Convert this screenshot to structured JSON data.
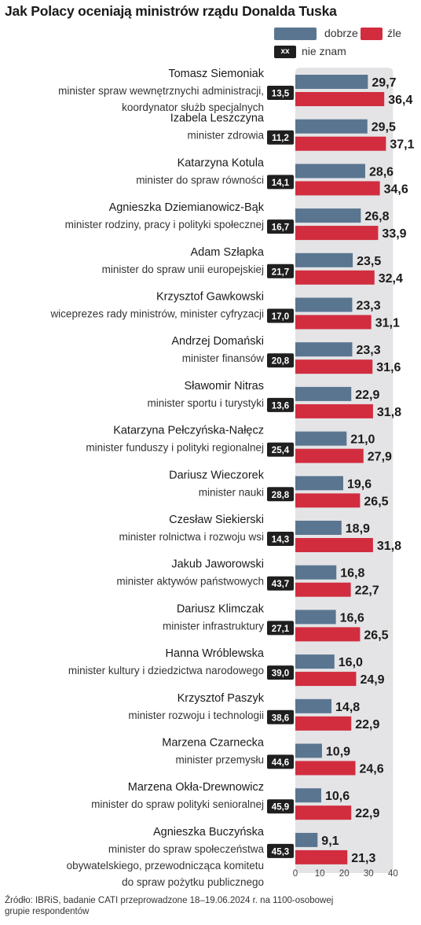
{
  "title": "Jak Polacy oceniają ministrów rządu Donalda Tuska",
  "legend": {
    "good": "dobrze",
    "bad": "źle",
    "unknown_code": "xx",
    "unknown": "nie znam"
  },
  "colors": {
    "good": "#5a7590",
    "bad": "#d12d3f",
    "unknown_box": "#1f1f1f",
    "band": "#e4e4e6"
  },
  "source": "Źródło: IBRiS, badanie CATI przeprowadzone 18–19.06.2024 r. na 1100-osobowej grupie respondentów",
  "chart_data": {
    "type": "bar",
    "orientation": "horizontal",
    "xlim": [
      0,
      40
    ],
    "x_ticks": [
      "0",
      "10",
      "20",
      "30",
      "40"
    ],
    "series": [
      {
        "name": "dobrze",
        "key": "good"
      },
      {
        "name": "źle",
        "key": "bad"
      },
      {
        "name": "nie znam",
        "key": "unknown"
      }
    ],
    "rows": [
      {
        "name": "Tomasz Siemoniak",
        "role": [
          "minister spraw wewnętrznychi administracji,",
          "koordynator służb specjalnych"
        ],
        "good": 29.7,
        "bad": 36.4,
        "unknown": 13.5,
        "good_label": "29,7",
        "bad_label": "36,4",
        "unknown_label": "13,5"
      },
      {
        "name": "Izabela Leszczyna",
        "role": [
          "minister zdrowia"
        ],
        "good": 29.5,
        "bad": 37.1,
        "unknown": 11.2,
        "good_label": "29,5",
        "bad_label": "37,1",
        "unknown_label": "11,2"
      },
      {
        "name": "Katarzyna Kotula",
        "role": [
          "minister do spraw równości"
        ],
        "good": 28.6,
        "bad": 34.6,
        "unknown": 14.1,
        "good_label": "28,6",
        "bad_label": "34,6",
        "unknown_label": "14,1"
      },
      {
        "name": "Agnieszka Dziemianowicz-Bąk",
        "role": [
          "minister rodziny, pracy i polityki społecznej"
        ],
        "good": 26.8,
        "bad": 33.9,
        "unknown": 16.7,
        "good_label": "26,8",
        "bad_label": "33,9",
        "unknown_label": "16,7"
      },
      {
        "name": "Adam Szłapka",
        "role": [
          "minister do spraw unii europejskiej"
        ],
        "good": 23.5,
        "bad": 32.4,
        "unknown": 21.7,
        "good_label": "23,5",
        "bad_label": "32,4",
        "unknown_label": "21,7"
      },
      {
        "name": "Krzysztof Gawkowski",
        "role": [
          "wiceprezes rady ministrów, minister cyfryzacji"
        ],
        "good": 23.3,
        "bad": 31.1,
        "unknown": 17.0,
        "good_label": "23,3",
        "bad_label": "31,1",
        "unknown_label": "17,0"
      },
      {
        "name": "Andrzej Domański",
        "role": [
          "minister finansów"
        ],
        "good": 23.3,
        "bad": 31.6,
        "unknown": 20.8,
        "good_label": "23,3",
        "bad_label": "31,6",
        "unknown_label": "20,8"
      },
      {
        "name": "Sławomir Nitras",
        "role": [
          "minister sportu i turystyki"
        ],
        "good": 22.9,
        "bad": 31.8,
        "unknown": 13.6,
        "good_label": "22,9",
        "bad_label": "31,8",
        "unknown_label": "13,6"
      },
      {
        "name": "Katarzyna Pełczyńska-Nałęcz",
        "role": [
          "minister funduszy i polityki regionalnej"
        ],
        "good": 21.0,
        "bad": 27.9,
        "unknown": 25.4,
        "good_label": "21,0",
        "bad_label": "27,9",
        "unknown_label": "25,4"
      },
      {
        "name": "Dariusz Wieczorek",
        "role": [
          "minister nauki"
        ],
        "good": 19.6,
        "bad": 26.5,
        "unknown": 28.8,
        "good_label": "19,6",
        "bad_label": "26,5",
        "unknown_label": "28,8"
      },
      {
        "name": "Czesław Siekierski",
        "role": [
          "minister rolnictwa i rozwoju wsi"
        ],
        "good": 18.9,
        "bad": 31.8,
        "unknown": 14.3,
        "good_label": "18,9",
        "bad_label": "31,8",
        "unknown_label": "14,3"
      },
      {
        "name": "Jakub Jaworowski",
        "role": [
          "minister aktywów państwowych"
        ],
        "good": 16.8,
        "bad": 22.7,
        "unknown": 43.7,
        "good_label": "16,8",
        "bad_label": "22,7",
        "unknown_label": "43,7"
      },
      {
        "name": "Dariusz Klimczak",
        "role": [
          "minister infrastruktury"
        ],
        "good": 16.6,
        "bad": 26.5,
        "unknown": 27.1,
        "good_label": "16,6",
        "bad_label": "26,5",
        "unknown_label": "27,1"
      },
      {
        "name": "Hanna Wróblewska",
        "role": [
          "minister kultury i dziedzictwa narodowego"
        ],
        "good": 16.0,
        "bad": 24.9,
        "unknown": 39.0,
        "good_label": "16,0",
        "bad_label": "24,9",
        "unknown_label": "39,0"
      },
      {
        "name": "Krzysztof Paszyk",
        "role": [
          "minister rozwoju i technologii"
        ],
        "good": 14.8,
        "bad": 22.9,
        "unknown": 38.6,
        "good_label": "14,8",
        "bad_label": "22,9",
        "unknown_label": "38,6"
      },
      {
        "name": "Marzena Czarnecka",
        "role": [
          "minister przemysłu"
        ],
        "good": 10.9,
        "bad": 24.6,
        "unknown": 44.6,
        "good_label": "10,9",
        "bad_label": "24,6",
        "unknown_label": "44,6"
      },
      {
        "name": "Marzena Okła-Drewnowicz",
        "role": [
          "minister do spraw polityki senioralnej"
        ],
        "good": 10.6,
        "bad": 22.9,
        "unknown": 45.9,
        "good_label": "10,6",
        "bad_label": "22,9",
        "unknown_label": "45,9"
      },
      {
        "name": "Agnieszka Buczyńska",
        "role": [
          "minister do spraw społeczeństwa",
          "obywatelskiego, przewodnicząca komitetu",
          "do spraw pożytku publicznego"
        ],
        "good": 9.1,
        "bad": 21.3,
        "unknown": 45.3,
        "good_label": "9,1",
        "bad_label": "21,3",
        "unknown_label": "45,3"
      }
    ]
  }
}
